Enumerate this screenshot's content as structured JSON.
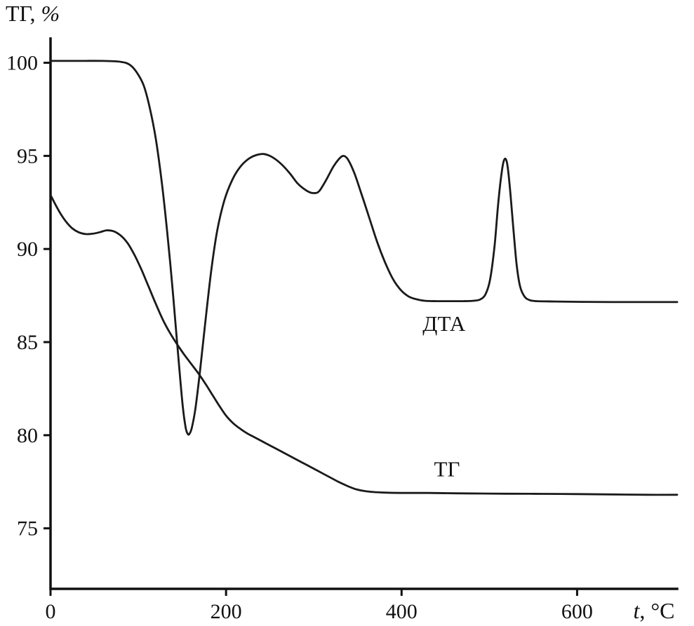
{
  "colors": {
    "curve": "#1a1a1a",
    "axis": "#111111",
    "text": "#111111",
    "background": "#ffffff"
  },
  "chart_data": {
    "type": "line",
    "title": "",
    "xlabel": "t, °C",
    "ylabel": "ТГ, %",
    "xlim": [
      0,
      714
    ],
    "ylim": [
      71.75,
      101.3
    ],
    "x_ticks": [
      0,
      200,
      400,
      600
    ],
    "y_ticks": [
      75,
      80,
      85,
      90,
      95,
      100
    ],
    "grid": false,
    "legend": "inline-labels",
    "series": [
      {
        "name": "ДТА",
        "label": "ДТА",
        "label_pos": [
          424,
          85.6
        ],
        "points": [
          [
            0,
            100.1
          ],
          [
            30,
            100.1
          ],
          [
            60,
            100.1
          ],
          [
            80,
            100.05
          ],
          [
            90,
            99.9
          ],
          [
            98,
            99.5
          ],
          [
            106,
            98.8
          ],
          [
            113,
            97.6
          ],
          [
            120,
            95.9
          ],
          [
            127,
            93.5
          ],
          [
            133,
            90.9
          ],
          [
            139,
            87.9
          ],
          [
            144,
            85.1
          ],
          [
            148,
            82.9
          ],
          [
            151,
            81.4
          ],
          [
            154,
            80.4
          ],
          [
            156,
            80.1
          ],
          [
            158,
            80.05
          ],
          [
            161,
            80.4
          ],
          [
            165,
            81.4
          ],
          [
            170,
            83.3
          ],
          [
            176,
            85.9
          ],
          [
            183,
            88.8
          ],
          [
            190,
            91.0
          ],
          [
            198,
            92.6
          ],
          [
            207,
            93.7
          ],
          [
            216,
            94.4
          ],
          [
            226,
            94.85
          ],
          [
            235,
            95.05
          ],
          [
            243,
            95.1
          ],
          [
            252,
            94.95
          ],
          [
            262,
            94.6
          ],
          [
            272,
            94.1
          ],
          [
            281,
            93.55
          ],
          [
            288,
            93.25
          ],
          [
            295,
            93.05
          ],
          [
            300,
            93.0
          ],
          [
            306,
            93.1
          ],
          [
            314,
            93.7
          ],
          [
            322,
            94.4
          ],
          [
            329,
            94.85
          ],
          [
            334,
            95.0
          ],
          [
            339,
            94.8
          ],
          [
            346,
            94.1
          ],
          [
            354,
            93.0
          ],
          [
            363,
            91.7
          ],
          [
            372,
            90.4
          ],
          [
            381,
            89.3
          ],
          [
            390,
            88.4
          ],
          [
            399,
            87.8
          ],
          [
            408,
            87.45
          ],
          [
            417,
            87.3
          ],
          [
            426,
            87.22
          ],
          [
            440,
            87.2
          ],
          [
            455,
            87.2
          ],
          [
            470,
            87.2
          ],
          [
            482,
            87.22
          ],
          [
            490,
            87.3
          ],
          [
            496,
            87.6
          ],
          [
            501,
            88.4
          ],
          [
            506,
            90.2
          ],
          [
            510,
            92.4
          ],
          [
            514,
            94.1
          ],
          [
            517,
            94.8
          ],
          [
            520,
            94.65
          ],
          [
            523,
            93.5
          ],
          [
            527,
            91.3
          ],
          [
            531,
            89.2
          ],
          [
            535,
            88.0
          ],
          [
            540,
            87.45
          ],
          [
            546,
            87.25
          ],
          [
            554,
            87.2
          ],
          [
            575,
            87.18
          ],
          [
            605,
            87.16
          ],
          [
            640,
            87.15
          ],
          [
            680,
            87.15
          ],
          [
            714,
            87.15
          ]
        ]
      },
      {
        "name": "ТГ",
        "label": "ТГ",
        "label_pos": [
          437,
          77.8
        ],
        "points": [
          [
            0,
            92.9
          ],
          [
            6,
            92.35
          ],
          [
            12,
            91.85
          ],
          [
            18,
            91.45
          ],
          [
            25,
            91.1
          ],
          [
            32,
            90.9
          ],
          [
            40,
            90.8
          ],
          [
            48,
            90.82
          ],
          [
            56,
            90.9
          ],
          [
            64,
            91.0
          ],
          [
            72,
            90.95
          ],
          [
            80,
            90.72
          ],
          [
            88,
            90.3
          ],
          [
            96,
            89.65
          ],
          [
            104,
            88.85
          ],
          [
            112,
            87.95
          ],
          [
            120,
            87.05
          ],
          [
            128,
            86.2
          ],
          [
            136,
            85.5
          ],
          [
            144,
            84.9
          ],
          [
            152,
            84.35
          ],
          [
            160,
            83.85
          ],
          [
            168,
            83.35
          ],
          [
            176,
            82.8
          ],
          [
            184,
            82.2
          ],
          [
            192,
            81.6
          ],
          [
            200,
            81.05
          ],
          [
            208,
            80.65
          ],
          [
            216,
            80.35
          ],
          [
            224,
            80.1
          ],
          [
            232,
            79.9
          ],
          [
            244,
            79.6
          ],
          [
            256,
            79.3
          ],
          [
            268,
            79.0
          ],
          [
            280,
            78.7
          ],
          [
            292,
            78.4
          ],
          [
            304,
            78.1
          ],
          [
            316,
            77.8
          ],
          [
            328,
            77.5
          ],
          [
            338,
            77.28
          ],
          [
            348,
            77.1
          ],
          [
            358,
            77.0
          ],
          [
            368,
            76.95
          ],
          [
            380,
            76.92
          ],
          [
            400,
            76.9
          ],
          [
            430,
            76.9
          ],
          [
            460,
            76.88
          ],
          [
            490,
            76.87
          ],
          [
            520,
            76.86
          ],
          [
            560,
            76.85
          ],
          [
            600,
            76.84
          ],
          [
            640,
            76.82
          ],
          [
            680,
            76.8
          ],
          [
            714,
            76.8
          ]
        ]
      }
    ]
  }
}
